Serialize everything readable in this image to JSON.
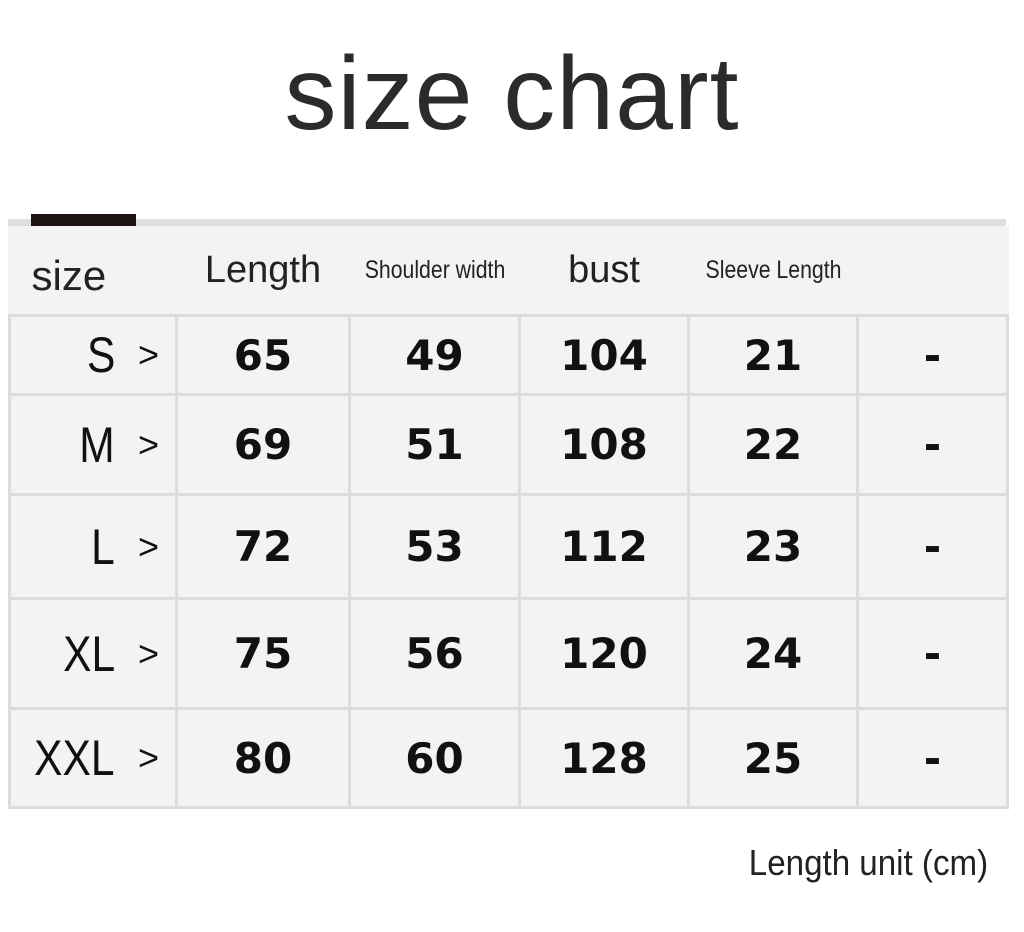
{
  "title": "size chart",
  "unit_note": "Length unit (cm)",
  "colors": {
    "cell_bg": "#f3f3f3",
    "grid": "#dcdcdc",
    "accent": "#1e1212"
  },
  "chart_data": {
    "type": "table",
    "title": "size chart",
    "columns": [
      "size",
      "Length",
      "Shoulder width",
      "bust",
      "Sleeve Length",
      ""
    ],
    "rows": [
      {
        "size": "S",
        "arrow": ">",
        "values": [
          "65",
          "49",
          "104",
          "21",
          "-"
        ]
      },
      {
        "size": "M",
        "arrow": ">",
        "values": [
          "69",
          "51",
          "108",
          "22",
          "-"
        ]
      },
      {
        "size": "L",
        "arrow": ">",
        "values": [
          "72",
          "53",
          "112",
          "23",
          "-"
        ]
      },
      {
        "size": "XL",
        "arrow": ">",
        "values": [
          "75",
          "56",
          "120",
          "24",
          "-"
        ]
      },
      {
        "size": "XXL",
        "arrow": ">",
        "values": [
          "80",
          "60",
          "128",
          "25",
          "-"
        ]
      }
    ]
  }
}
